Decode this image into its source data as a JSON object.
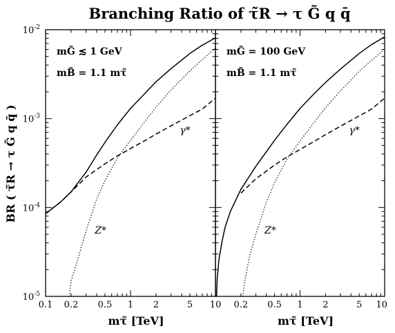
{
  "chart_data": {
    "type": "line",
    "title": "Branching Ratio of τ̃R → τ G̃ q q̄",
    "ylabel": "BR ( τ̃R → τ G̃ q q̄ )",
    "y_scale": "log",
    "x_scale": "log",
    "ylim": [
      1e-05,
      0.01
    ],
    "y_tick_labels": [
      "10-5",
      "10-4",
      "10-3",
      "10-2"
    ],
    "series_styles": {
      "total": "solid",
      "photon": "dashed",
      "z": "dotted"
    },
    "panels": [
      {
        "xlabel": "mτ̃ [TeV]",
        "xlim": [
          0.1,
          10
        ],
        "x_tick_labels": [
          "0.1",
          "0.2",
          "0.5",
          "1",
          "2",
          "5",
          "10"
        ],
        "annotations": [
          "mG̃ ≲ 1 GeV",
          "mB̃ = 1.1 mτ̃"
        ],
        "series": [
          {
            "label": "",
            "style": "solid",
            "x": [
              0.1,
              0.15,
              0.2,
              0.3,
              0.4,
              0.5,
              0.7,
              1.0,
              1.5,
              2.0,
              3.0,
              5.0,
              7.0,
              10.0
            ],
            "y": [
              8.5e-05,
              0.000115,
              0.00015,
              0.00025,
              0.00039,
              0.00054,
              0.00085,
              0.0013,
              0.00195,
              0.0026,
              0.00365,
              0.0054,
              0.0067,
              0.0081
            ]
          },
          {
            "label": "γ*",
            "style": "dashed",
            "x": [
              0.1,
              0.15,
              0.2,
              0.3,
              0.5,
              0.7,
              1.0,
              1.5,
              2.0,
              3.0,
              5.0,
              7.0,
              10.0
            ],
            "y": [
              8.5e-05,
              0.000115,
              0.00015,
              0.00022,
              0.00031,
              0.00038,
              0.00046,
              0.00057,
              0.00067,
              0.00083,
              0.00108,
              0.00128,
              0.0017
            ]
          },
          {
            "label": "Z*",
            "style": "dotted",
            "x": [
              0.19,
              0.2,
              0.25,
              0.3,
              0.4,
              0.5,
              0.7,
              1.0,
              1.5,
              2.0,
              3.0,
              5.0,
              7.0,
              10.0
            ],
            "y": [
              1e-05,
              1.5e-05,
              3e-05,
              5.5e-05,
              0.000125,
              0.0002,
              0.00036,
              0.00057,
              0.00095,
              0.00135,
              0.0021,
              0.00345,
              0.0046,
              0.0062
            ]
          }
        ],
        "photon_label_at": {
          "x": 3.8,
          "y": 0.00068
        },
        "z_label_at": {
          "x": 0.38,
          "y": 5.1e-05
        }
      },
      {
        "xlabel": "mτ̃ [TeV]",
        "xlim": [
          0.1,
          10
        ],
        "x_tick_labels": [
          "0.2",
          "0.5",
          "1",
          "2",
          "5",
          "10"
        ],
        "annotations": [
          "mG̃ = 100 GeV",
          "mB̃ = 1.1 mτ̃"
        ],
        "series": [
          {
            "label": "",
            "style": "solid",
            "x": [
              0.103,
              0.105,
              0.11,
              0.12,
              0.13,
              0.15,
              0.18,
              0.2,
              0.3,
              0.5,
              0.7,
              1.0,
              1.5,
              2.0,
              3.0,
              5.0,
              7.0,
              10.0
            ],
            "y": [
              1e-05,
              1.6e-05,
              2.6e-05,
              4.2e-05,
              6e-05,
              9e-05,
              0.00013,
              0.00016,
              0.00029,
              0.00057,
              0.00086,
              0.0013,
              0.00195,
              0.00255,
              0.0036,
              0.0054,
              0.0068,
              0.0083
            ]
          },
          {
            "label": "γ*",
            "style": "dashed",
            "x": [
              0.2,
              0.3,
              0.5,
              0.7,
              1.0,
              1.5,
              2.0,
              3.0,
              5.0,
              7.0,
              10.0
            ],
            "y": [
              0.000145,
              0.00021,
              0.0003,
              0.00037,
              0.00045,
              0.00056,
              0.00066,
              0.00082,
              0.00107,
              0.00128,
              0.0017
            ]
          },
          {
            "label": "Z*",
            "style": "dotted",
            "x": [
              0.21,
              0.22,
              0.25,
              0.3,
              0.4,
              0.5,
              0.7,
              1.0,
              1.5,
              2.0,
              3.0,
              5.0,
              7.0,
              10.0
            ],
            "y": [
              1e-05,
              1.4e-05,
              2.7e-05,
              5e-05,
              0.000115,
              0.00019,
              0.00035,
              0.00056,
              0.00093,
              0.00132,
              0.00205,
              0.0034,
              0.0045,
              0.0061
            ]
          }
        ],
        "photon_label_at": {
          "x": 3.8,
          "y": 0.00068
        },
        "z_label_at": {
          "x": 0.38,
          "y": 5.1e-05
        }
      }
    ]
  }
}
